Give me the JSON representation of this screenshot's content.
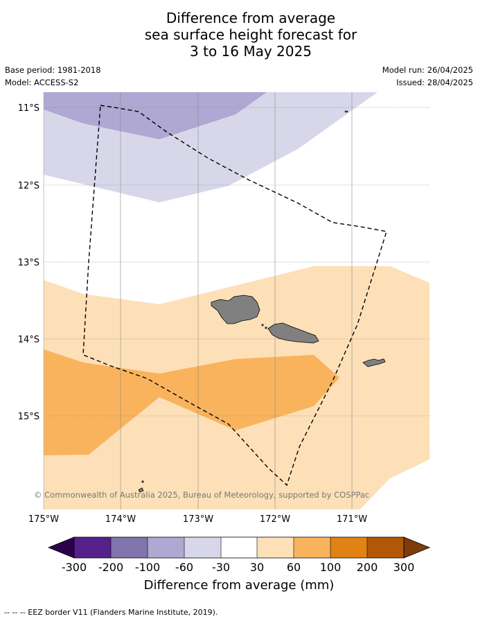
{
  "title": {
    "line1": "Difference from average",
    "line2": "sea surface height forecast for",
    "line3": "3 to 16 May 2025"
  },
  "meta": {
    "base_period": "Base period: 1981-2018",
    "model": "Model: ACCESS-S2",
    "model_run": "Model run: 26/04/2025",
    "issued": "Issued: 28/04/2025"
  },
  "map": {
    "lat_labels": [
      "11°S",
      "12°S",
      "13°S",
      "14°S",
      "15°S"
    ],
    "lon_labels": [
      "175°W",
      "174°W",
      "173°W",
      "172°W",
      "171°W"
    ],
    "copyright": "© Commonwealth of Australia 2025, Bureau of Meteorology, supported by COSPPac"
  },
  "colorbar": {
    "tick_labels": [
      "-300",
      "-200",
      "-100",
      "-60",
      "-30",
      "30",
      "60",
      "100",
      "200",
      "300"
    ],
    "bin_colors": [
      "#56208a",
      "#8274ad",
      "#aea8d2",
      "#d8d7ea",
      "#ffffff",
      "#fde0b7",
      "#f9b35d",
      "#e08214",
      "#b15707"
    ],
    "under_color": "#2d004b",
    "over_color": "#7f3b08",
    "label": "Difference from average (mm)"
  },
  "footer": {
    "eez_legend": "--  --  -- EEZ border V11 (Flanders Marine Institute, 2019)."
  }
}
